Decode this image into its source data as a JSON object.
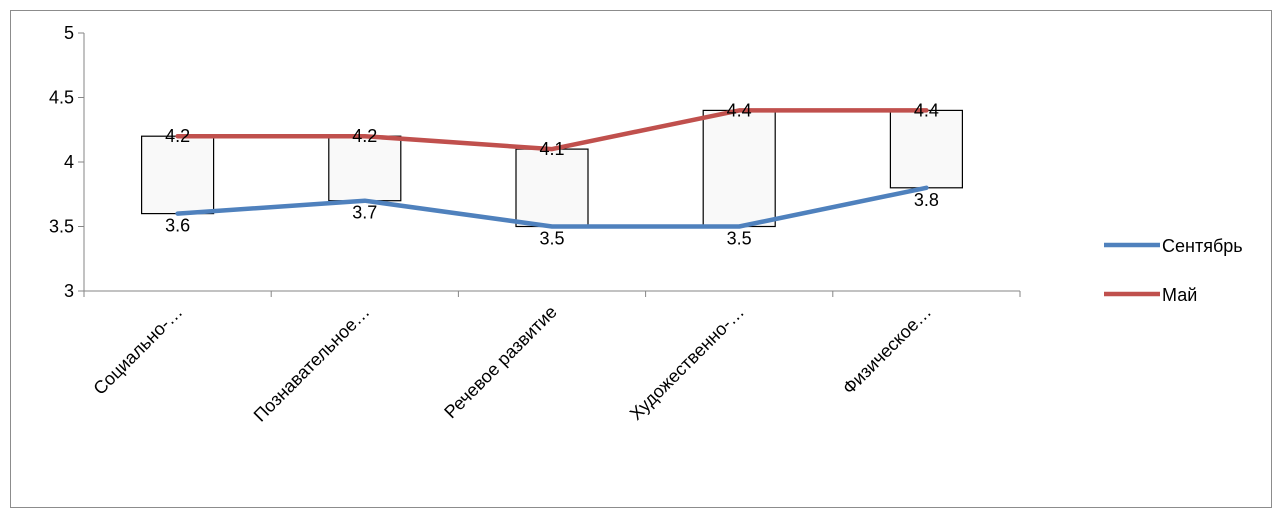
{
  "chart_data": {
    "type": "line",
    "categories": [
      "Социально-…",
      "Познавательное…",
      "Речевое развитие",
      "Художественно-…",
      "Физическое…"
    ],
    "series": [
      {
        "name": "Сентябрь",
        "values": [
          3.6,
          3.7,
          3.5,
          3.5,
          3.8
        ],
        "color": "#4f81bd"
      },
      {
        "name": "Май",
        "values": [
          4.2,
          4.2,
          4.1,
          4.4,
          4.4
        ],
        "color": "#c0504d"
      }
    ],
    "ylim": [
      3,
      5
    ],
    "yticks": [
      3,
      3.5,
      4,
      4.5,
      5
    ],
    "ytick_labels": [
      "3",
      "3.5",
      "4",
      "4.5",
      "5"
    ],
    "data_labels_sep": [
      "3.6",
      "3.7",
      "3.5",
      "3.5",
      "3.8"
    ],
    "data_labels_may": [
      "4.2",
      "4.2",
      "4.1",
      "4.4",
      "4.4"
    ],
    "up_down_bars": true,
    "up_bar_color": "#f9f9f9",
    "grid": false,
    "legend_position": "right",
    "title": "",
    "xlabel": "",
    "ylabel": ""
  }
}
